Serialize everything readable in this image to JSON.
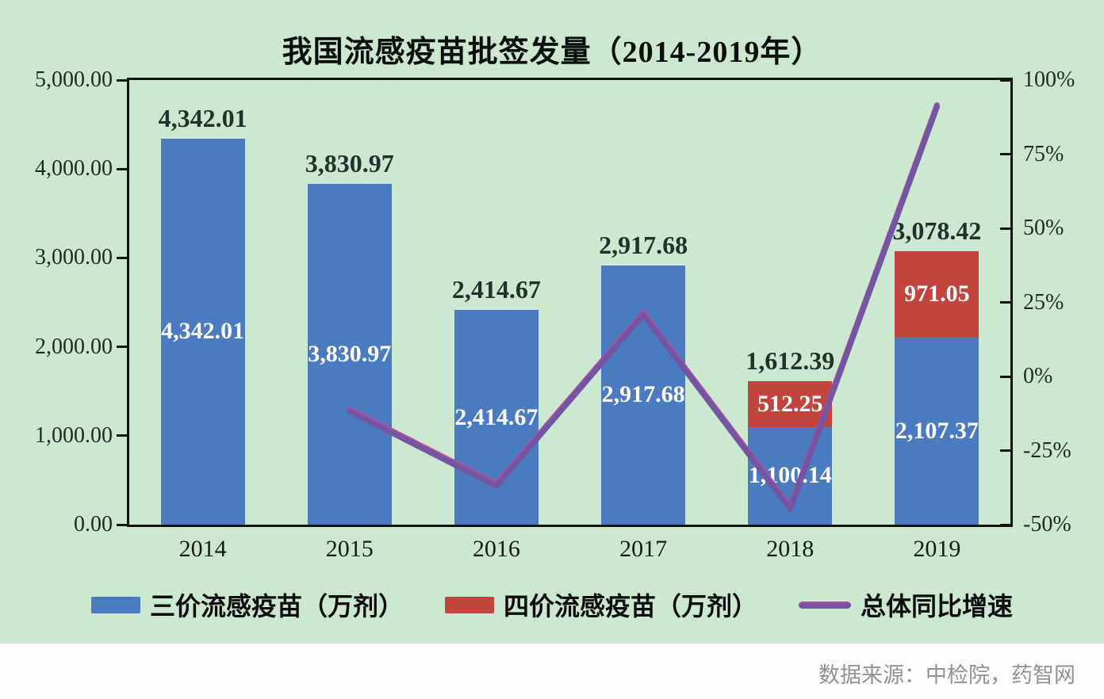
{
  "title": "我国流感疫苗批签发量（2014-2019年）",
  "source_note": "数据来源：中检院，药智网",
  "colors": {
    "background": "#cde8d0",
    "bar_blue": "#4a7bc0",
    "bar_red": "#c2443e",
    "line_purple": "#7355a2",
    "line_highlight": "#ac4fa0",
    "total_label": "#1f332d",
    "axis_text": "#1e2a26",
    "plot_border": "#101510",
    "source_text": "#8f9392"
  },
  "chart_data": {
    "type": "bar",
    "subtype": "stacked-bars-with-growth-line",
    "title": "我国流感疫苗批签发量（2014-2019年）",
    "categories": [
      "2014",
      "2015",
      "2016",
      "2017",
      "2018",
      "2019"
    ],
    "series": [
      {
        "name": "三价流感疫苗（万剂）",
        "type": "bar",
        "color": "#4a7bc0",
        "values": [
          4342.01,
          3830.97,
          2414.67,
          2917.68,
          1100.14,
          2107.37
        ],
        "labels": [
          "4,342.01",
          "3,830.97",
          "2,414.67",
          "2,917.68",
          "1,100.14",
          "2,107.37"
        ]
      },
      {
        "name": "四价流感疫苗（万剂）",
        "type": "bar",
        "color": "#c2443e",
        "values": [
          0,
          0,
          0,
          0,
          512.25,
          971.05
        ],
        "labels": [
          "",
          "",
          "",
          "",
          "512.25",
          "971.05"
        ]
      },
      {
        "name": "总体同比增速",
        "type": "line",
        "axis": "right",
        "color": "#7355a2",
        "values_pct": [
          null,
          -11.77,
          -36.97,
          20.83,
          -44.74,
          90.92
        ]
      }
    ],
    "total_labels": [
      "4,342.01",
      "3,830.97",
      "2,414.67",
      "2,917.68",
      "1,612.39",
      "3,078.42"
    ],
    "left_axis": {
      "min": 0,
      "max": 5000,
      "ticks": [
        "5,000.00",
        "4,000.00",
        "3,000.00",
        "2,000.00",
        "1,000.00",
        "0.00"
      ]
    },
    "right_axis": {
      "min": -50,
      "max": 100,
      "ticks": [
        "100%",
        "75%",
        "50%",
        "25%",
        "0%",
        "-25%",
        "-50%"
      ]
    },
    "grid": false,
    "legend_position": "bottom"
  },
  "legend": {
    "items": [
      {
        "label": "三价流感疫苗（万剂）",
        "swatch": "blue-rect"
      },
      {
        "label": "四价流感疫苗（万剂）",
        "swatch": "red-rect"
      },
      {
        "label": "总体同比增速",
        "swatch": "purple-line"
      }
    ]
  }
}
